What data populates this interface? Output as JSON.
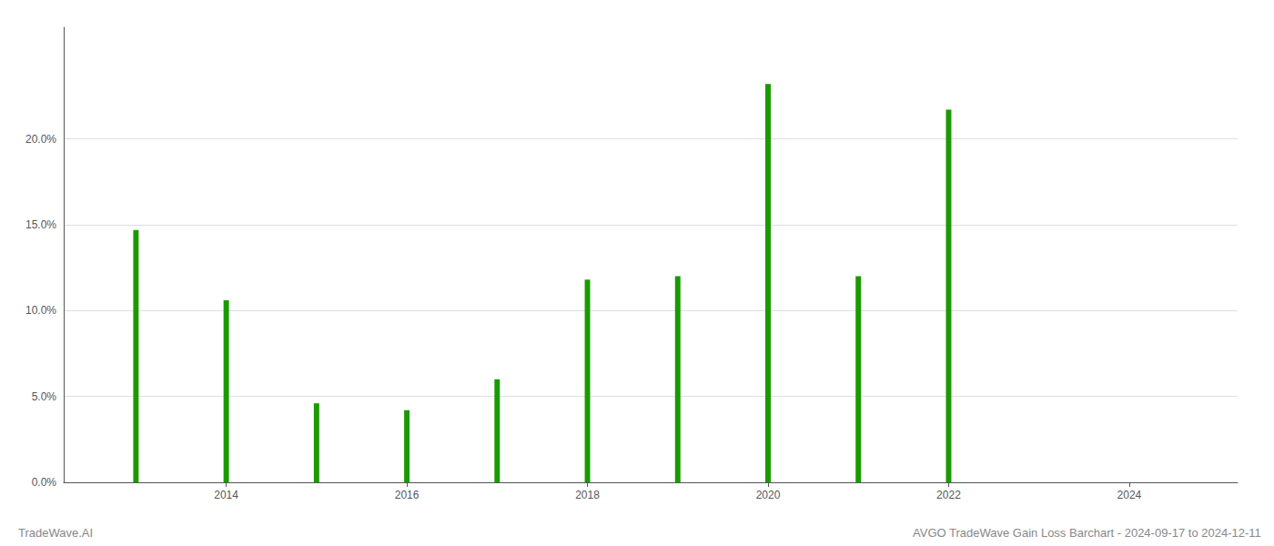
{
  "chart_data": {
    "type": "bar",
    "x": [
      2013,
      2014,
      2015,
      2016,
      2017,
      2018,
      2019,
      2020,
      2021,
      2022
    ],
    "values": [
      0.147,
      0.106,
      0.046,
      0.042,
      0.06,
      0.118,
      0.12,
      0.232,
      0.12,
      0.217
    ],
    "color": "#1a9a00",
    "xlim": [
      2012.2,
      2025.2
    ],
    "xticks": [
      2014,
      2016,
      2018,
      2020,
      2022,
      2024
    ],
    "ylim": [
      0.0,
      0.265
    ],
    "yticks": [
      {
        "value": 0.0,
        "label": "0.0%"
      },
      {
        "value": 0.05,
        "label": "5.0%"
      },
      {
        "value": 0.1,
        "label": "10.0%"
      },
      {
        "value": 0.15,
        "label": "15.0%"
      },
      {
        "value": 0.2,
        "label": "20.0%"
      }
    ],
    "grid": true,
    "annotations": [
      "TradeWave.AI",
      "AVGO TradeWave Gain Loss Barchart - 2024-09-17 to 2024-12-11"
    ]
  }
}
